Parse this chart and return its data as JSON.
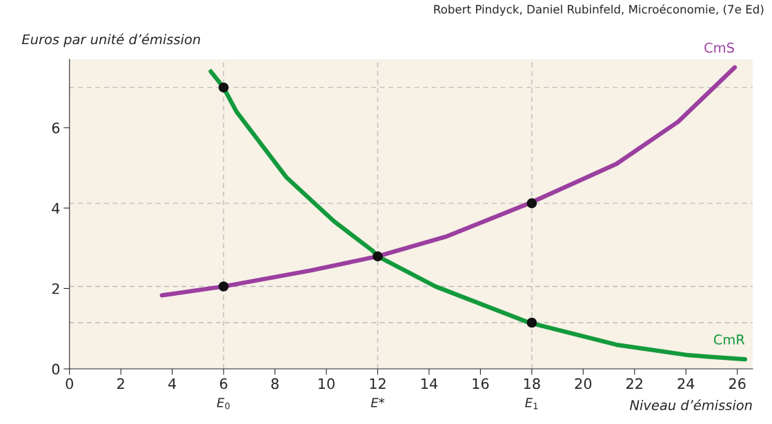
{
  "chart_data": {
    "type": "line",
    "annotations": [
      "Robert Pindyck, Daniel Rubinfeld, Microéconomie, (7e Ed)"
    ],
    "xlabel": "Niveau d’émission",
    "ylabel": "Euros par unité d’émission",
    "xlim": [
      0,
      26.6
    ],
    "ylim": [
      0,
      7.7
    ],
    "xticks": [
      0,
      2,
      4,
      6,
      8,
      10,
      12,
      14,
      16,
      18,
      20,
      22,
      24,
      26
    ],
    "yticks": [
      0,
      2,
      4,
      6
    ],
    "grid": false,
    "legend": false,
    "series": [
      {
        "name": "CmR",
        "color": "#139a3c",
        "x": [
          5.5,
          6,
          6.5,
          8.44,
          10.3,
          11.8,
          12,
          14.25,
          17.9,
          21.3,
          24.1,
          26.3
        ],
        "values": [
          7.4,
          7.0,
          6.4,
          4.77,
          3.67,
          2.94,
          2.8,
          2.05,
          1.15,
          0.6,
          0.34,
          0.24
        ]
      },
      {
        "name": "CmS",
        "color": "#9b3fa0",
        "x": [
          3.6,
          6,
          9.4,
          12,
          14.7,
          17.9,
          21.3,
          23.7,
          25.9
        ],
        "values": [
          1.83,
          2.05,
          2.45,
          2.8,
          3.3,
          4.12,
          5.1,
          6.15,
          7.5
        ]
      },
      {
        "type": "scatter",
        "color": "#111111",
        "marker": "circle",
        "x": [
          6,
          6,
          12,
          18,
          18
        ],
        "values": [
          7.0,
          2.05,
          2.8,
          4.12,
          1.15
        ]
      }
    ],
    "ref_lines": [
      {
        "axis": "x",
        "value": 6,
        "label": "E$_{0}$",
        "line_style": "dashed",
        "color": "#bbbbbb"
      },
      {
        "axis": "x",
        "value": 12,
        "label": "E*",
        "line_style": "dashed",
        "color": "#bbbbbb"
      },
      {
        "axis": "x",
        "value": 18,
        "label": "E$_{1}$",
        "line_style": "dashed",
        "color": "#bbbbbb"
      },
      {
        "axis": "y",
        "value": 7.0,
        "line_style": "dashed",
        "color": "#bbbbbb"
      },
      {
        "axis": "y",
        "value": 4.12,
        "line_style": "dashed",
        "color": "#bbbbbb"
      },
      {
        "axis": "y",
        "value": 2.05,
        "line_style": "dashed",
        "color": "#bbbbbb"
      },
      {
        "axis": "y",
        "value": 1.15,
        "line_style": "dashed",
        "color": "#bbbbbb"
      }
    ]
  }
}
